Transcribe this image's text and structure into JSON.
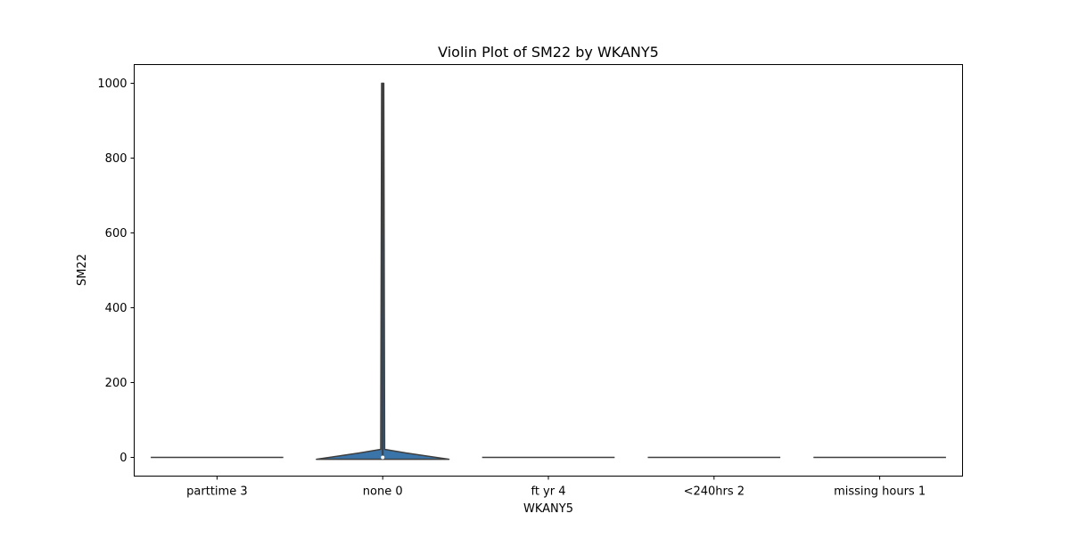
{
  "chart_data": {
    "type": "violin",
    "title": "Violin Plot of SM22 by WKANY5",
    "xlabel": "WKANY5",
    "ylabel": "SM22",
    "categories": [
      "parttime 3",
      "none 0",
      "ft yr 4",
      "<240hrs 2",
      "missing hours 1"
    ],
    "ylim": [
      -50,
      1050
    ],
    "yticks": [
      0,
      200,
      400,
      600,
      800,
      1000
    ],
    "grid": false,
    "legend": "none",
    "violins": [
      {
        "category": "parttime 3",
        "min": 0,
        "max": 0,
        "median": 0
      },
      {
        "category": "none 0",
        "min": -5,
        "max": 1000,
        "median": 0
      },
      {
        "category": "ft yr 4",
        "min": 0,
        "max": 0,
        "median": 0
      },
      {
        "category": "<240hrs 2",
        "min": 0,
        "max": 0,
        "median": 0
      },
      {
        "category": "missing hours 1",
        "min": 0,
        "max": 0,
        "median": 0
      }
    ],
    "colors": {
      "violin_fill": "#3b74a8",
      "violin_edge": "#3f3f3f",
      "axes": "#000000"
    }
  }
}
